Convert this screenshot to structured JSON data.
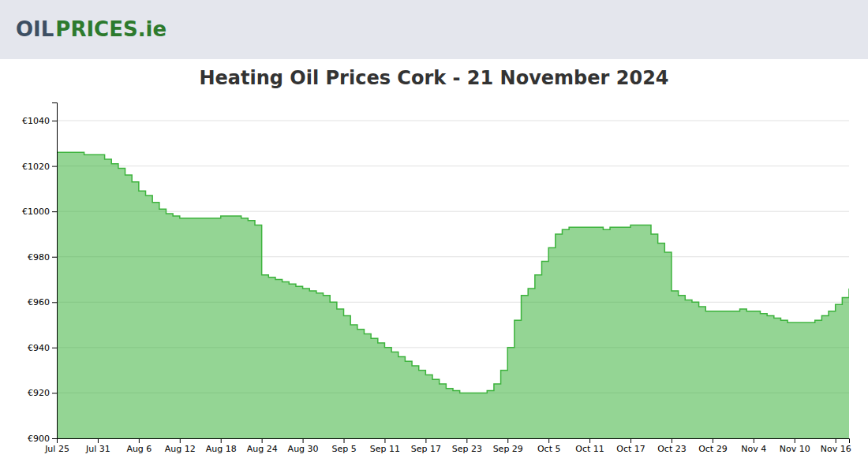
{
  "chart_data": {
    "type": "area",
    "line_style": "step",
    "title": "Heating Oil Prices Cork - 21 November 2024",
    "annotations": [
      {
        "text": "OIL",
        "color": "#3d4f63"
      },
      {
        "text": "PRICES.ie",
        "color": "#2d7a2d"
      }
    ],
    "color": "#3db33d",
    "grid": true,
    "categories": [
      "Jul 25",
      null,
      null,
      null,
      null,
      null,
      "Jul 31",
      null,
      null,
      null,
      null,
      null,
      "Aug 6",
      null,
      null,
      null,
      null,
      null,
      "Aug 12",
      null,
      null,
      null,
      null,
      null,
      "Aug 18",
      null,
      null,
      null,
      null,
      null,
      "Aug 24",
      null,
      null,
      null,
      null,
      null,
      "Aug 30",
      null,
      null,
      null,
      null,
      null,
      "Sep 5",
      null,
      null,
      null,
      null,
      null,
      "Sep 11",
      null,
      null,
      null,
      null,
      null,
      "Sep 17",
      null,
      null,
      null,
      null,
      null,
      "Sep 23",
      null,
      null,
      null,
      null,
      null,
      "Sep 29",
      null,
      null,
      null,
      null,
      null,
      "Oct 5",
      null,
      null,
      null,
      null,
      null,
      "Oct 11",
      null,
      null,
      null,
      null,
      null,
      "Oct 17",
      null,
      null,
      null,
      null,
      null,
      "Oct 23",
      null,
      null,
      null,
      null,
      null,
      "Oct 29",
      null,
      null,
      null,
      null,
      null,
      "Nov 4",
      null,
      null,
      null,
      null,
      null,
      "Nov 10",
      null,
      null,
      null,
      null,
      null,
      "Nov 16",
      null,
      null
    ],
    "values": [
      1026,
      1026,
      1026,
      1026,
      1025,
      1025,
      1025,
      1023,
      1021,
      1019,
      1016,
      1013,
      1009,
      1007,
      1004,
      1001,
      999,
      998,
      997,
      997,
      997,
      997,
      997,
      997,
      998,
      998,
      998,
      997,
      996,
      994,
      972,
      971,
      970,
      969,
      968,
      967,
      966,
      965,
      964,
      963,
      960,
      957,
      954,
      950,
      948,
      946,
      944,
      942,
      940,
      938,
      936,
      934,
      932,
      930,
      928,
      926,
      924,
      922,
      921,
      920,
      920,
      920,
      920,
      921,
      924,
      930,
      940,
      952,
      963,
      966,
      972,
      978,
      984,
      990,
      992,
      993,
      993,
      993,
      993,
      993,
      992,
      993,
      993,
      993,
      994,
      994,
      994,
      990,
      986,
      982,
      965,
      963,
      961,
      960,
      958,
      956,
      956,
      956,
      956,
      956,
      957,
      956,
      956,
      955,
      954,
      953,
      952,
      951,
      951,
      951,
      951,
      952,
      954,
      956,
      959,
      962,
      966
    ],
    "ylim": [
      900,
      1048
    ],
    "yticks": [
      {
        "value": 900,
        "label": "€900"
      },
      {
        "value": 920,
        "label": "€920"
      },
      {
        "value": 940,
        "label": "€940"
      },
      {
        "value": 960,
        "label": "€960"
      },
      {
        "value": 980,
        "label": "€980"
      },
      {
        "value": 1000,
        "label": "€1000"
      },
      {
        "value": 1020,
        "label": "€1020"
      },
      {
        "value": 1040,
        "label": "€1040"
      }
    ]
  }
}
